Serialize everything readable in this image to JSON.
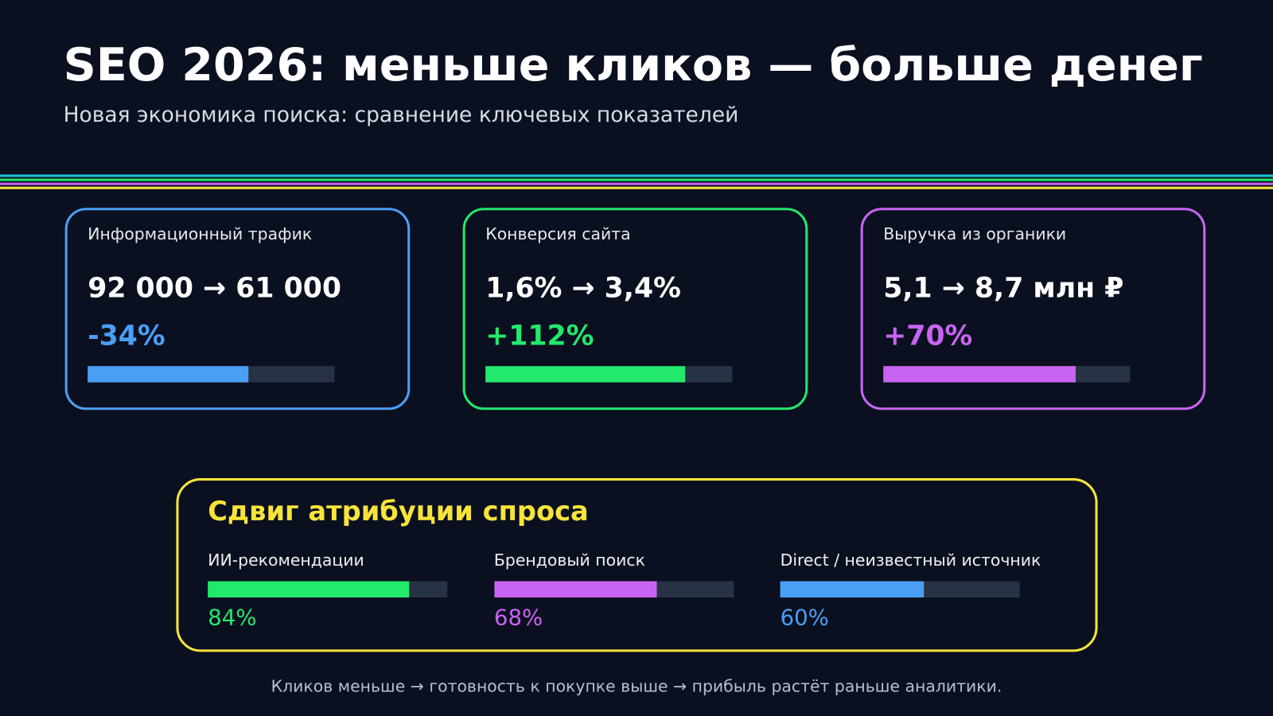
{
  "header": {
    "title": "SEO 2026: меньше кликов — больше денег",
    "subtitle": "Новая экономика поиска: сравнение ключевых показателей"
  },
  "cards": [
    {
      "label": "Информационный трафик",
      "value_text": "92 000 → 61 000",
      "change": "-34%",
      "progress": 65,
      "color": "#4a9ff5"
    },
    {
      "label": "Конверсия сайта",
      "value_text": "1,6% → 3,4%",
      "change": "+112%",
      "progress": 81,
      "color": "#22e86c"
    },
    {
      "label": "Выручка из органики",
      "value_text": "5,1 → 8,7 млн ₽",
      "change": "+70%",
      "progress": 78,
      "color": "#c964f2"
    }
  ],
  "attribution": {
    "title": "Сдвиг атрибуции спроса",
    "color": "#f7e43a",
    "items": [
      {
        "label": "ИИ-рекомендации",
        "value": 84,
        "value_label": "84%",
        "color": "#22e86c"
      },
      {
        "label": "Брендовый поиск",
        "value": 68,
        "value_label": "68%",
        "color": "#c964f2"
      },
      {
        "label": "Direct / неизвестный источник",
        "value": 60,
        "value_label": "60%",
        "color": "#4a9ff5"
      }
    ]
  },
  "footer": "Кликов меньше → готовность к покупке выше → прибыль растёт раньше аналитики."
}
